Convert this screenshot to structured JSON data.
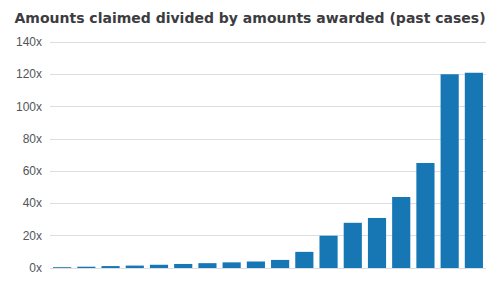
{
  "chart_data": {
    "type": "bar",
    "title": "Amounts claimed divided by amounts awarded (past cases)",
    "categories": [
      null,
      null,
      null,
      null,
      null,
      null,
      null,
      null,
      null,
      null,
      null,
      null,
      null,
      null,
      null,
      null,
      null,
      null
    ],
    "values": [
      0.5,
      0.8,
      1.2,
      1.5,
      2.0,
      2.5,
      3.0,
      3.5,
      4.0,
      5.0,
      10.0,
      20.0,
      28.0,
      31.0,
      44.0,
      65.0,
      120.0,
      121.0
    ],
    "color": "#1777b4",
    "ylim": [
      0,
      140
    ],
    "yticks": [
      {
        "value": 0,
        "label": "0x"
      },
      {
        "value": 20,
        "label": "20x"
      },
      {
        "value": 40,
        "label": "40x"
      },
      {
        "value": 60,
        "label": "60x"
      },
      {
        "value": 80,
        "label": "80x"
      },
      {
        "value": 100,
        "label": "100x"
      },
      {
        "value": 120,
        "label": "120x"
      },
      {
        "value": 140,
        "label": "140x"
      }
    ],
    "grid": true,
    "tick_labels": "y"
  }
}
